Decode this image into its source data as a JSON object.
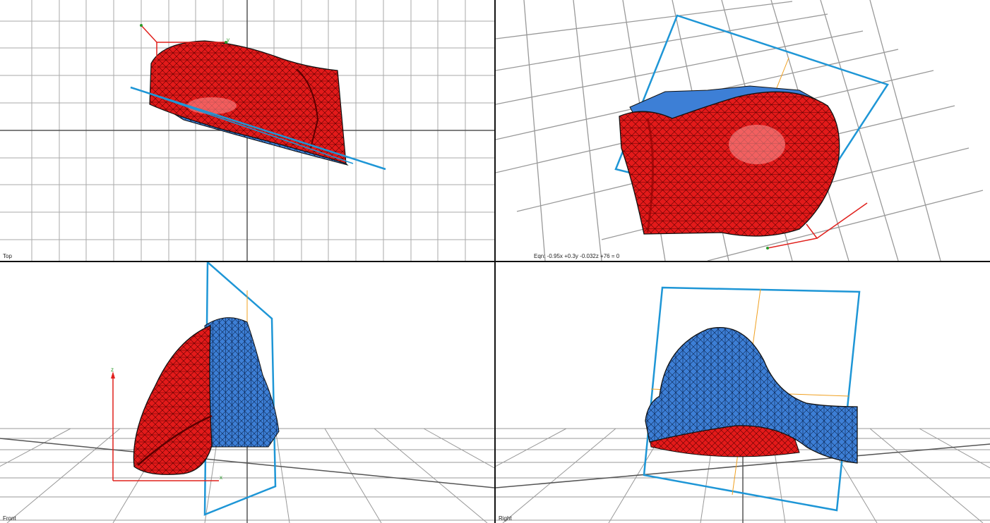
{
  "viewports": {
    "top": {
      "label": "Top"
    },
    "perspective": {
      "label": "",
      "equation": "Eqn:  -0.95x +0.3y  -0.032z +76 = 0"
    },
    "front": {
      "label": "Front"
    },
    "right": {
      "label": "Right"
    }
  },
  "axes": {
    "x": "x",
    "y": "y",
    "z": "z"
  },
  "colors": {
    "mesh_front": "#e31a1a",
    "mesh_cut": "#3d7fd6",
    "plane": "#1e96d6",
    "axis": "#e0201c",
    "axis_secondary": "#f0a020",
    "grid": "#999999",
    "divider": "#111111"
  },
  "icons": {
    "gizmo": "axis-gizmo-icon"
  }
}
